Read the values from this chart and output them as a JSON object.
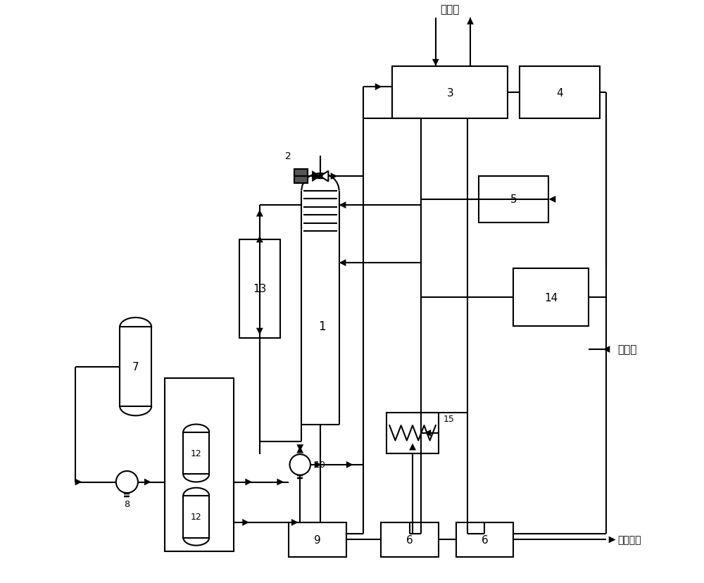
{
  "bg": "#ffffff",
  "lc": "#000000",
  "lw": 1.5,
  "text_caini": "采暖水",
  "text_xunhuan": "循环水",
  "text_shenghua": "生化处理",
  "font": "SimHei",
  "figw": 10.0,
  "figh": 8.29
}
